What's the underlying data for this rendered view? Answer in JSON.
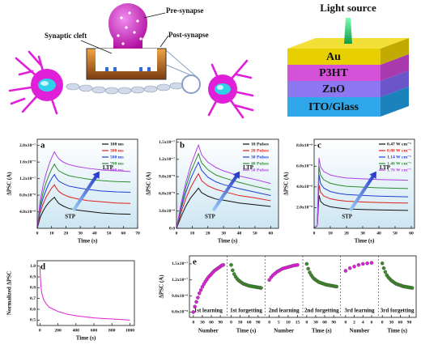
{
  "diagram": {
    "synapse": {
      "cleft": "Synaptic cleft",
      "pre": "Pre-synapse",
      "post": "Post-synapse"
    },
    "device": {
      "light": "Light source",
      "layers": [
        "Au",
        "P3HT",
        "ZnO",
        "ITO/Glass"
      ]
    }
  },
  "chart_data": [
    {
      "type": "line",
      "panel_label": "a",
      "x_label": "Time (s)",
      "y_label": "ΔPSC (A)",
      "annotations": [
        "LTP",
        "STP"
      ],
      "x": [
        0,
        2,
        4,
        6,
        8,
        10,
        12,
        13,
        15,
        18,
        22,
        28,
        35,
        45,
        55,
        65
      ],
      "xlim": [
        0,
        70
      ],
      "xticks": [
        0,
        10,
        20,
        30,
        40,
        50,
        60,
        70
      ],
      "ylim": [
        0,
        2.15e-07
      ],
      "yticks": [
        {
          "value": 4e-08,
          "label": "4.0x10⁻⁸"
        },
        {
          "value": 8e-08,
          "label": "8.0x10⁻⁸"
        },
        {
          "value": 1.2e-07,
          "label": "1.2x10⁻⁷"
        },
        {
          "value": 1.6e-07,
          "label": "1.6x10⁻⁷"
        },
        {
          "value": 2e-07,
          "label": "2.0x10⁻⁷"
        }
      ],
      "series": [
        {
          "name": "100 ms",
          "color": "#111111",
          "values": [
            0,
            2.6e-08,
            4.1e-08,
            5.3e-08,
            6.2e-08,
            6.9e-08,
            7.5e-08,
            6.9e-08,
            6e-08,
            5.4e-08,
            4.8e-08,
            4.4e-08,
            4.1e-08,
            3.7e-08,
            3.5e-08,
            3.4e-08
          ]
        },
        {
          "name": "300 ms",
          "color": "#e0201a",
          "values": [
            0,
            3.7e-08,
            5.8e-08,
            7.4e-08,
            8.6e-08,
            9.7e-08,
            1.05e-07,
            9.8e-08,
            8.9e-08,
            8.2e-08,
            7.6e-08,
            7.1e-08,
            6.7e-08,
            6.4e-08,
            6.1e-08,
            6e-08
          ]
        },
        {
          "name": "500 ms",
          "color": "#1f3fd6",
          "values": [
            0,
            4.6e-08,
            7.2e-08,
            9.1e-08,
            1.07e-07,
            1.2e-07,
            1.3e-07,
            1.23e-07,
            1.14e-07,
            1.08e-07,
            1.02e-07,
            9.8e-08,
            9.4e-08,
            9e-08,
            8.8e-08,
            8.7e-08
          ]
        },
        {
          "name": "700 ms",
          "color": "#2e8b2e",
          "values": [
            0,
            5.4e-08,
            8.5e-08,
            1.09e-07,
            1.27e-07,
            1.43e-07,
            1.55e-07,
            1.48e-07,
            1.39e-07,
            1.33e-07,
            1.27e-07,
            1.23e-07,
            1.19e-07,
            1.15e-07,
            1.13e-07,
            1.12e-07
          ]
        },
        {
          "name": "900 ms",
          "color": "#b040e0",
          "values": [
            0,
            6.5e-08,
            1.02e-07,
            1.3e-07,
            1.52e-07,
            1.7e-07,
            1.85e-07,
            1.78e-07,
            1.68e-07,
            1.6e-07,
            1.54e-07,
            1.49e-07,
            1.45e-07,
            1.41e-07,
            1.39e-07,
            1.37e-07
          ]
        }
      ]
    },
    {
      "type": "line",
      "panel_label": "b",
      "x_label": "Time (s)",
      "y_label": "ΔPSC (A)",
      "annotations": [
        "LTP",
        "STP"
      ],
      "x": [
        0,
        3,
        6,
        9,
        12,
        14,
        16,
        20,
        25,
        30,
        40,
        50,
        60
      ],
      "xlim": [
        0,
        65
      ],
      "xticks": [
        0,
        10,
        20,
        30,
        40,
        50,
        60
      ],
      "ylim": [
        0,
        1.55e-07
      ],
      "yticks": [
        {
          "value": 0,
          "label": "0.0"
        },
        {
          "value": 3e-08,
          "label": "3.0x10⁻⁸"
        },
        {
          "value": 6e-08,
          "label": "6.0x10⁻⁸"
        },
        {
          "value": 9e-08,
          "label": "9.0x10⁻⁸"
        },
        {
          "value": 1.2e-07,
          "label": "1.2x10⁻⁷"
        },
        {
          "value": 1.5e-07,
          "label": "1.5x10⁻⁷"
        }
      ],
      "series": [
        {
          "name": "10 Pulses",
          "color": "#111111",
          "values": [
            0,
            2.1e-08,
            3.9e-08,
            5.3e-08,
            6.3e-08,
            7e-08,
            6.2e-08,
            5.6e-08,
            5.1e-08,
            4.9e-08,
            4.4e-08,
            4.1e-08,
            3.8e-08
          ]
        },
        {
          "name": "20 Pulses",
          "color": "#e0201a",
          "values": [
            0,
            2.9e-08,
            5.2e-08,
            7.1e-08,
            8.6e-08,
            9.5e-08,
            8.3e-08,
            7.4e-08,
            6.8e-08,
            6.4e-08,
            5.7e-08,
            5.3e-08,
            4.8e-08
          ]
        },
        {
          "name": "30 Pulses",
          "color": "#1f3fd6",
          "values": [
            0,
            3.5e-08,
            6.3e-08,
            8.6e-08,
            1.04e-07,
            1.15e-07,
            1.01e-07,
            8.9e-08,
            8.1e-08,
            7.6e-08,
            6.9e-08,
            6.3e-08,
            5.7e-08
          ]
        },
        {
          "name": "40 Pulses",
          "color": "#2e8b2e",
          "values": [
            0,
            3.9e-08,
            7.2e-08,
            9.8e-08,
            1.17e-07,
            1.3e-07,
            1.14e-07,
            1.02e-07,
            9.3e-08,
            8.8e-08,
            8e-08,
            7.3e-08,
            6.7e-08
          ]
        },
        {
          "name": "50 Pulses",
          "color": "#b040e0",
          "values": [
            0,
            4.4e-08,
            8e-08,
            1.09e-07,
            1.31e-07,
            1.45e-07,
            1.28e-07,
            1.15e-07,
            1.06e-07,
            1e-07,
            9.1e-08,
            8.5e-08,
            7.8e-08
          ]
        }
      ]
    },
    {
      "type": "line",
      "panel_label": "c",
      "x_label": "Time (s)",
      "y_label": "ΔPSC (A)",
      "annotations": [
        "LTP",
        "STP"
      ],
      "x": [
        0,
        2,
        3,
        4,
        6,
        10,
        15,
        20,
        30,
        40,
        50,
        58
      ],
      "xlim": [
        0,
        62
      ],
      "xticks": [
        0,
        10,
        20,
        30,
        40,
        50,
        60
      ],
      "ylim": [
        0,
        8.6e-08
      ],
      "yticks": [
        {
          "value": 2e-08,
          "label": "2.0x10⁻⁸"
        },
        {
          "value": 4e-08,
          "label": "4.0x10⁻⁸"
        },
        {
          "value": 6e-08,
          "label": "6.0x10⁻⁸"
        },
        {
          "value": 8e-08,
          "label": "8.0x10⁻⁸"
        }
      ],
      "series": [
        {
          "name": "0.47 W cm⁻²",
          "color": "#111111",
          "values": [
            0,
            3e-09,
            3.2e-08,
            2.6e-08,
            2.3e-08,
            2.08e-08,
            1.96e-08,
            1.88e-08,
            1.82e-08,
            1.78e-08,
            1.75e-08,
            1.73e-08
          ]
        },
        {
          "name": "0.80 W cm⁻²",
          "color": "#e0201a",
          "values": [
            0,
            3e-09,
            4.2e-08,
            3.48e-08,
            3.12e-08,
            2.85e-08,
            2.71e-08,
            2.62e-08,
            2.54e-08,
            2.49e-08,
            2.45e-08,
            2.44e-08
          ]
        },
        {
          "name": "1.14 W cm⁻²",
          "color": "#1f3fd6",
          "values": [
            0,
            3e-09,
            5.2e-08,
            4.32e-08,
            3.88e-08,
            3.55e-08,
            3.37e-08,
            3.26e-08,
            3.18e-08,
            3.11e-08,
            3.07e-08,
            3.04e-08
          ]
        },
        {
          "name": "1.46 W cm⁻²",
          "color": "#2e8b2e",
          "values": [
            0,
            3e-09,
            6e-08,
            5.12e-08,
            4.68e-08,
            4.35e-08,
            4.17e-08,
            4.06e-08,
            3.98e-08,
            3.91e-08,
            3.87e-08,
            3.84e-08
          ]
        },
        {
          "name": "1.76 W cm⁻²",
          "color": "#b040e0",
          "values": [
            0,
            3e-09,
            6.8e-08,
            5.92e-08,
            5.48e-08,
            5.15e-08,
            4.97e-08,
            4.86e-08,
            4.78e-08,
            4.71e-08,
            4.67e-08,
            4.64e-08
          ]
        }
      ]
    },
    {
      "type": "line",
      "panel_label": "d",
      "x_label": "Time (s)",
      "y_label": "Normalized ΔPSC",
      "x": [
        0,
        5,
        10,
        20,
        40,
        70,
        100,
        150,
        200,
        300,
        400,
        500,
        600,
        700,
        800,
        900,
        1000
      ],
      "xlim": [
        -30,
        1050
      ],
      "xticks": [
        0,
        200,
        400,
        600,
        800,
        1000
      ],
      "ylim": [
        0.45,
        1.05
      ],
      "yticks": [
        0.5,
        0.6,
        0.7,
        0.8,
        0.9,
        {
          "value": 1.0,
          "label": "1.0"
        }
      ],
      "series": [
        {
          "color": "#e020d8",
          "values": [
            1.0,
            0.9,
            0.82,
            0.75,
            0.69,
            0.65,
            0.62,
            0.6,
            0.58,
            0.555,
            0.54,
            0.53,
            0.52,
            0.515,
            0.51,
            0.505,
            0.5
          ]
        }
      ]
    },
    {
      "type": "scatter",
      "panel_label": "e",
      "y_label": "ΔPSC (A)",
      "ylim": [
        5e-08,
        1.65e-07
      ],
      "yticks": [
        {
          "value": 6e-08,
          "label": "6.0x10⁻⁸"
        },
        {
          "value": 9e-08,
          "label": "9.0x10⁻⁸"
        },
        {
          "value": 1.2e-07,
          "label": "1.2x10⁻⁷"
        },
        {
          "value": 1.5e-07,
          "label": "1.5x10⁻⁷"
        }
      ],
      "panels": [
        {
          "name": "1st learning",
          "x_label": "Number",
          "color": "#e020d8",
          "xlim": [
            -5,
            105
          ],
          "xticks": [
            0,
            30,
            60,
            90
          ],
          "x": [
            0,
            5,
            10,
            15,
            20,
            25,
            30,
            35,
            40,
            45,
            50,
            55,
            60,
            65,
            70,
            75,
            80,
            85,
            90,
            95,
            100
          ],
          "values": [
            6e-08,
            7e-08,
            7.9e-08,
            8.7e-08,
            9.5e-08,
            1.01e-07,
            1.07e-07,
            1.12e-07,
            1.17e-07,
            1.21e-07,
            1.25e-07,
            1.28e-07,
            1.31e-07,
            1.34e-07,
            1.37e-07,
            1.39e-07,
            1.41e-07,
            1.43e-07,
            1.45e-07,
            1.47e-07,
            1.48e-07
          ]
        },
        {
          "name": "1st forgetting",
          "x_label": "Time (s)",
          "color": "#3d8a2a",
          "xlim": [
            -5,
            105
          ],
          "xticks": [
            0,
            30,
            60,
            90
          ],
          "x": [
            0,
            5,
            10,
            15,
            20,
            25,
            30,
            35,
            40,
            45,
            50,
            55,
            60,
            65,
            70,
            75,
            80,
            85,
            90,
            95,
            100
          ],
          "values": [
            1.48e-07,
            1.38e-07,
            1.31e-07,
            1.26e-07,
            1.22e-07,
            1.19e-07,
            1.17e-07,
            1.15e-07,
            1.13e-07,
            1.12e-07,
            1.11e-07,
            1.1e-07,
            1.09e-07,
            1.085e-07,
            1.08e-07,
            1.075e-07,
            1.07e-07,
            1.065e-07,
            1.06e-07,
            1.055e-07,
            1.05e-07
          ]
        },
        {
          "name": "2nd learning",
          "x_label": "Number",
          "color": "#e020d8",
          "xlim": [
            -1,
            16.5
          ],
          "xticks": [
            0,
            5,
            10,
            15
          ],
          "x": [
            0,
            1,
            2,
            3,
            4,
            5,
            6,
            7,
            8,
            9,
            10,
            11,
            12,
            13,
            14,
            15
          ],
          "values": [
            1.2e-07,
            1.25e-07,
            1.29e-07,
            1.32e-07,
            1.35e-07,
            1.37e-07,
            1.39e-07,
            1.41e-07,
            1.42e-07,
            1.43e-07,
            1.44e-07,
            1.45e-07,
            1.46e-07,
            1.47e-07,
            1.475e-07,
            1.48e-07
          ]
        },
        {
          "name": "2nd forgetting",
          "x_label": "Time (s)",
          "color": "#3d8a2a",
          "xlim": [
            -5,
            105
          ],
          "xticks": [
            0,
            30,
            60,
            90
          ],
          "x": [
            0,
            5,
            10,
            15,
            20,
            25,
            30,
            35,
            40,
            45,
            50,
            55,
            60,
            65,
            70,
            75,
            80,
            85,
            90,
            95,
            100
          ],
          "values": [
            1.5e-07,
            1.41e-07,
            1.34e-07,
            1.29e-07,
            1.25e-07,
            1.22e-07,
            1.2e-07,
            1.18e-07,
            1.16e-07,
            1.15e-07,
            1.14e-07,
            1.13e-07,
            1.12e-07,
            1.11e-07,
            1.105e-07,
            1.1e-07,
            1.095e-07,
            1.09e-07,
            1.085e-07,
            1.08e-07,
            1.075e-07
          ]
        },
        {
          "name": "3rd learning",
          "x_label": "Number",
          "color": "#e020d8",
          "xlim": [
            -0.6,
            7
          ],
          "xticks": [
            0,
            2,
            4,
            6
          ],
          "x": [
            0,
            1,
            2,
            3,
            4,
            5,
            6
          ],
          "values": [
            1.37e-07,
            1.42e-07,
            1.45e-07,
            1.48e-07,
            1.5e-07,
            1.51e-07,
            1.52e-07
          ]
        },
        {
          "name": "3rd forgetting",
          "x_label": "Time (s)",
          "color": "#3d8a2a",
          "xlim": [
            -5,
            105
          ],
          "xticks": [
            0,
            30,
            60,
            90
          ],
          "x": [
            0,
            5,
            10,
            15,
            20,
            25,
            30,
            35,
            40,
            45,
            50,
            55,
            60,
            65,
            70,
            75,
            80,
            85,
            90,
            95,
            100
          ],
          "values": [
            1.51e-07,
            1.42e-07,
            1.35e-07,
            1.29e-07,
            1.25e-07,
            1.22e-07,
            1.19e-07,
            1.17e-07,
            1.15e-07,
            1.13e-07,
            1.12e-07,
            1.11e-07,
            1.1e-07,
            1.09e-07,
            1.08e-07,
            1.075e-07,
            1.07e-07,
            1.065e-07,
            1.06e-07,
            1.055e-07,
            1.05e-07
          ]
        }
      ]
    }
  ]
}
